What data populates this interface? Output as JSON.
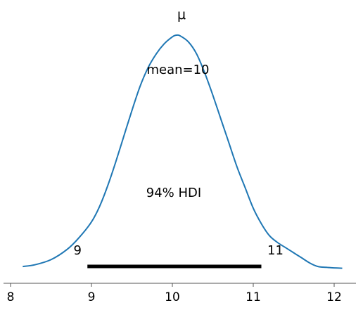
{
  "chart_data": {
    "type": "line",
    "title": "μ",
    "xlabel": "",
    "ylabel": "",
    "xlim": [
      8.0,
      12.15
    ],
    "x_ticks": [
      8,
      9,
      10,
      11,
      12
    ],
    "grid": false,
    "series": [
      {
        "color": "#1f77b4",
        "x": [
          8.15,
          8.3,
          8.5,
          8.7,
          8.85,
          9.0,
          9.1,
          9.2,
          9.3,
          9.4,
          9.5,
          9.6,
          9.7,
          9.8,
          9.9,
          10.0,
          10.05,
          10.1,
          10.2,
          10.3,
          10.4,
          10.5,
          10.6,
          10.7,
          10.8,
          10.9,
          11.0,
          11.1,
          11.2,
          11.3,
          11.4,
          11.5,
          11.6,
          11.7,
          11.8,
          11.9,
          12.0,
          12.1
        ],
        "density": [
          0.02,
          0.03,
          0.06,
          0.12,
          0.19,
          0.28,
          0.37,
          0.49,
          0.63,
          0.78,
          0.93,
          1.07,
          1.18,
          1.26,
          1.32,
          1.36,
          1.37,
          1.365,
          1.33,
          1.26,
          1.15,
          1.02,
          0.88,
          0.74,
          0.6,
          0.48,
          0.36,
          0.27,
          0.2,
          0.16,
          0.13,
          0.1,
          0.07,
          0.04,
          0.02,
          0.015,
          0.012,
          0.01
        ]
      }
    ],
    "annotations": {
      "mean_label": "mean=10",
      "hdi_label": "94% HDI",
      "hdi_low": 8.95,
      "hdi_high": 11.1,
      "hdi_low_label": "9",
      "hdi_high_label": "11"
    }
  }
}
